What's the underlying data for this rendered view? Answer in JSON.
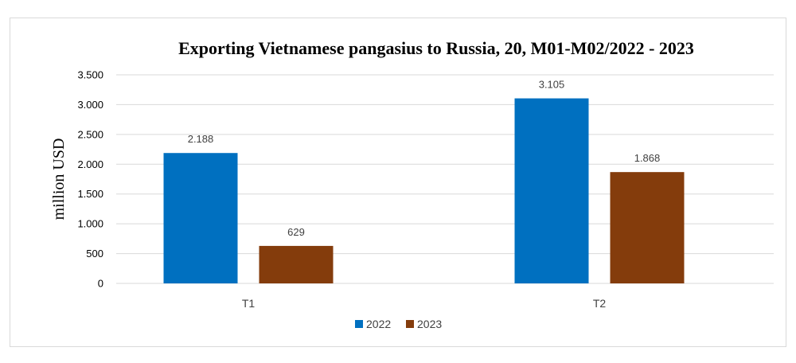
{
  "chart_data": {
    "type": "bar",
    "title": "Exporting Vietnamese pangasius to Russia, 20, M01-M02/2022 - 2023",
    "ylabel": "million USD",
    "xlabel": "",
    "categories": [
      "T1",
      "T2"
    ],
    "series": [
      {
        "name": "2022",
        "values": [
          2188,
          3105
        ],
        "labels": [
          "2.188",
          "3.105"
        ],
        "color": "#0070c0"
      },
      {
        "name": "2023",
        "values": [
          629,
          1868
        ],
        "labels": [
          "629",
          "1.868"
        ],
        "color": "#843c0c"
      }
    ],
    "ylim": [
      0,
      3500
    ],
    "yticks": [
      0,
      500,
      1000,
      1500,
      2000,
      2500,
      3000,
      3500
    ],
    "ytick_labels": [
      "0",
      "500",
      "1.000",
      "1.500",
      "2.000",
      "2.500",
      "3.000",
      "3.500"
    ],
    "grid": true,
    "legend": "bottom"
  }
}
